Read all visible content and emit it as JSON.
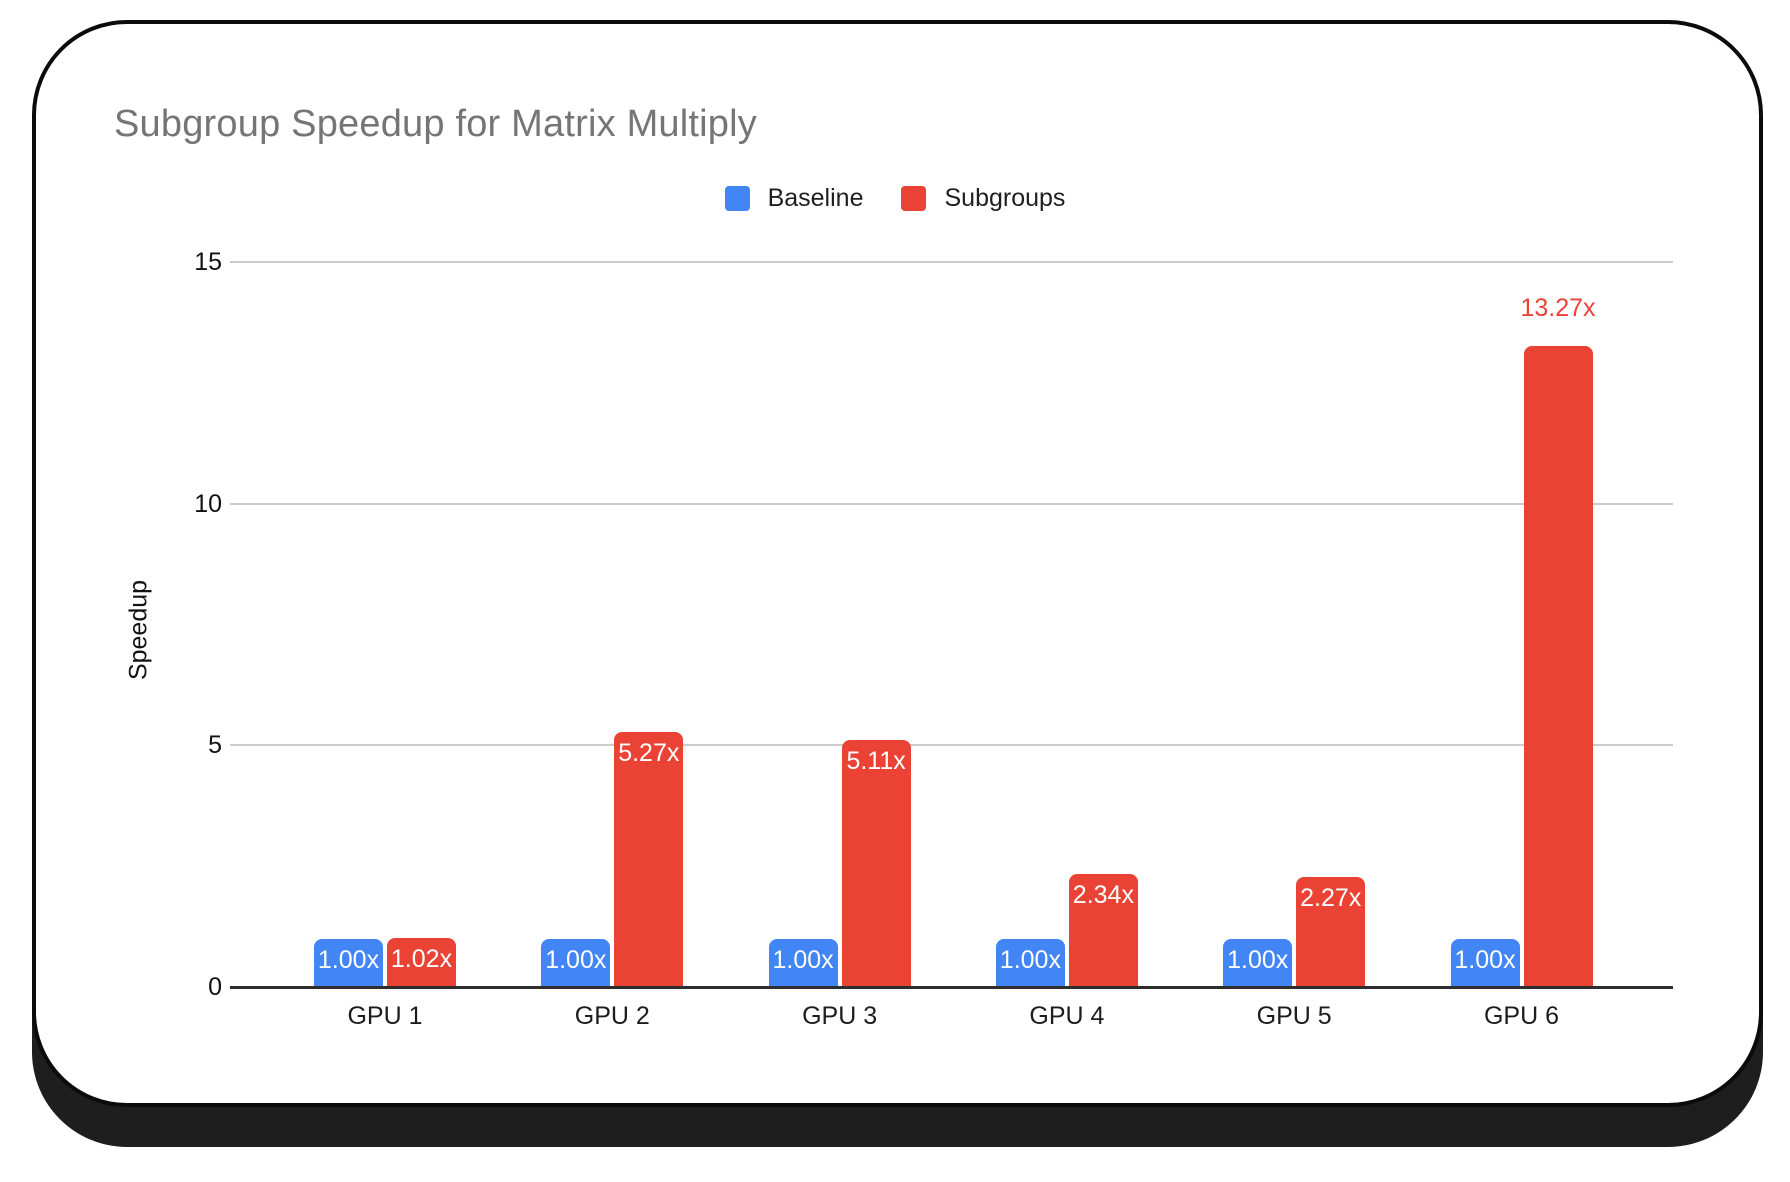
{
  "title": "Subgroup Speedup for Matrix Multiply",
  "legend": {
    "items": [
      {
        "label": "Baseline",
        "color": "#4285F4"
      },
      {
        "label": "Subgroups",
        "color": "#EA4335"
      }
    ]
  },
  "chart_data": {
    "type": "bar",
    "title": "Subgroup Speedup for Matrix Multiply",
    "xlabel": "",
    "ylabel": "Speedup",
    "categories": [
      "GPU 1",
      "GPU 2",
      "GPU 3",
      "GPU 4",
      "GPU 5",
      "GPU 6"
    ],
    "series": [
      {
        "name": "Baseline",
        "color": "#4285F4",
        "values": [
          1.0,
          1.0,
          1.0,
          1.0,
          1.0,
          1.0
        ],
        "labels": [
          "1.00x",
          "1.00x",
          "1.00x",
          "1.00x",
          "1.00x",
          "1.00x"
        ]
      },
      {
        "name": "Subgroups",
        "color": "#EA4335",
        "values": [
          1.02,
          5.27,
          5.11,
          2.34,
          2.27,
          13.27
        ],
        "labels": [
          "1.02x",
          "5.27x",
          "5.11x",
          "2.34x",
          "2.27x",
          "13.27x"
        ]
      }
    ],
    "yticks": [
      0,
      5,
      10,
      15
    ],
    "ylim": [
      0,
      15
    ],
    "grid": true,
    "legend_position": "top"
  },
  "colors": {
    "baseline_blue": "#4285F4",
    "subgroups_red": "#EA4335",
    "title_gray": "#757575",
    "gridline_gray": "#cccccc",
    "axis_dark": "#2e2e2e",
    "card_border": "#0b0b0b",
    "card_shadow": "#1e1e1e",
    "bar_label_white": "#ffffff"
  }
}
